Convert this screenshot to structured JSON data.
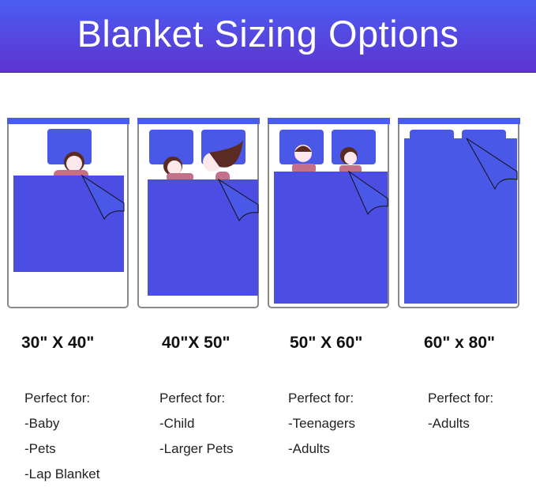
{
  "title": "Blanket Sizing Options",
  "colors": {
    "banner_top": "#4a5df2",
    "banner_bottom": "#5e34cf",
    "blanket": "#4b4ee6",
    "pillow": "#4a58e8",
    "bed_frame": "#8a8a8a"
  },
  "options": [
    {
      "size": "30\" X 40\"",
      "heading": "Perfect for:",
      "uses": [
        "-Baby",
        "-Pets",
        "-Lap Blanket"
      ]
    },
    {
      "size": "40\"X 50\"",
      "heading": "Perfect for:",
      "uses": [
        "-Child",
        "-Larger Pets"
      ]
    },
    {
      "size": "50\" X 60\"",
      "heading": "Perfect for:",
      "uses": [
        "-Teenagers",
        "-Adults"
      ]
    },
    {
      "size": "60\" x 80\"",
      "heading": "Perfect for:",
      "uses": [
        "-Adults"
      ]
    }
  ]
}
